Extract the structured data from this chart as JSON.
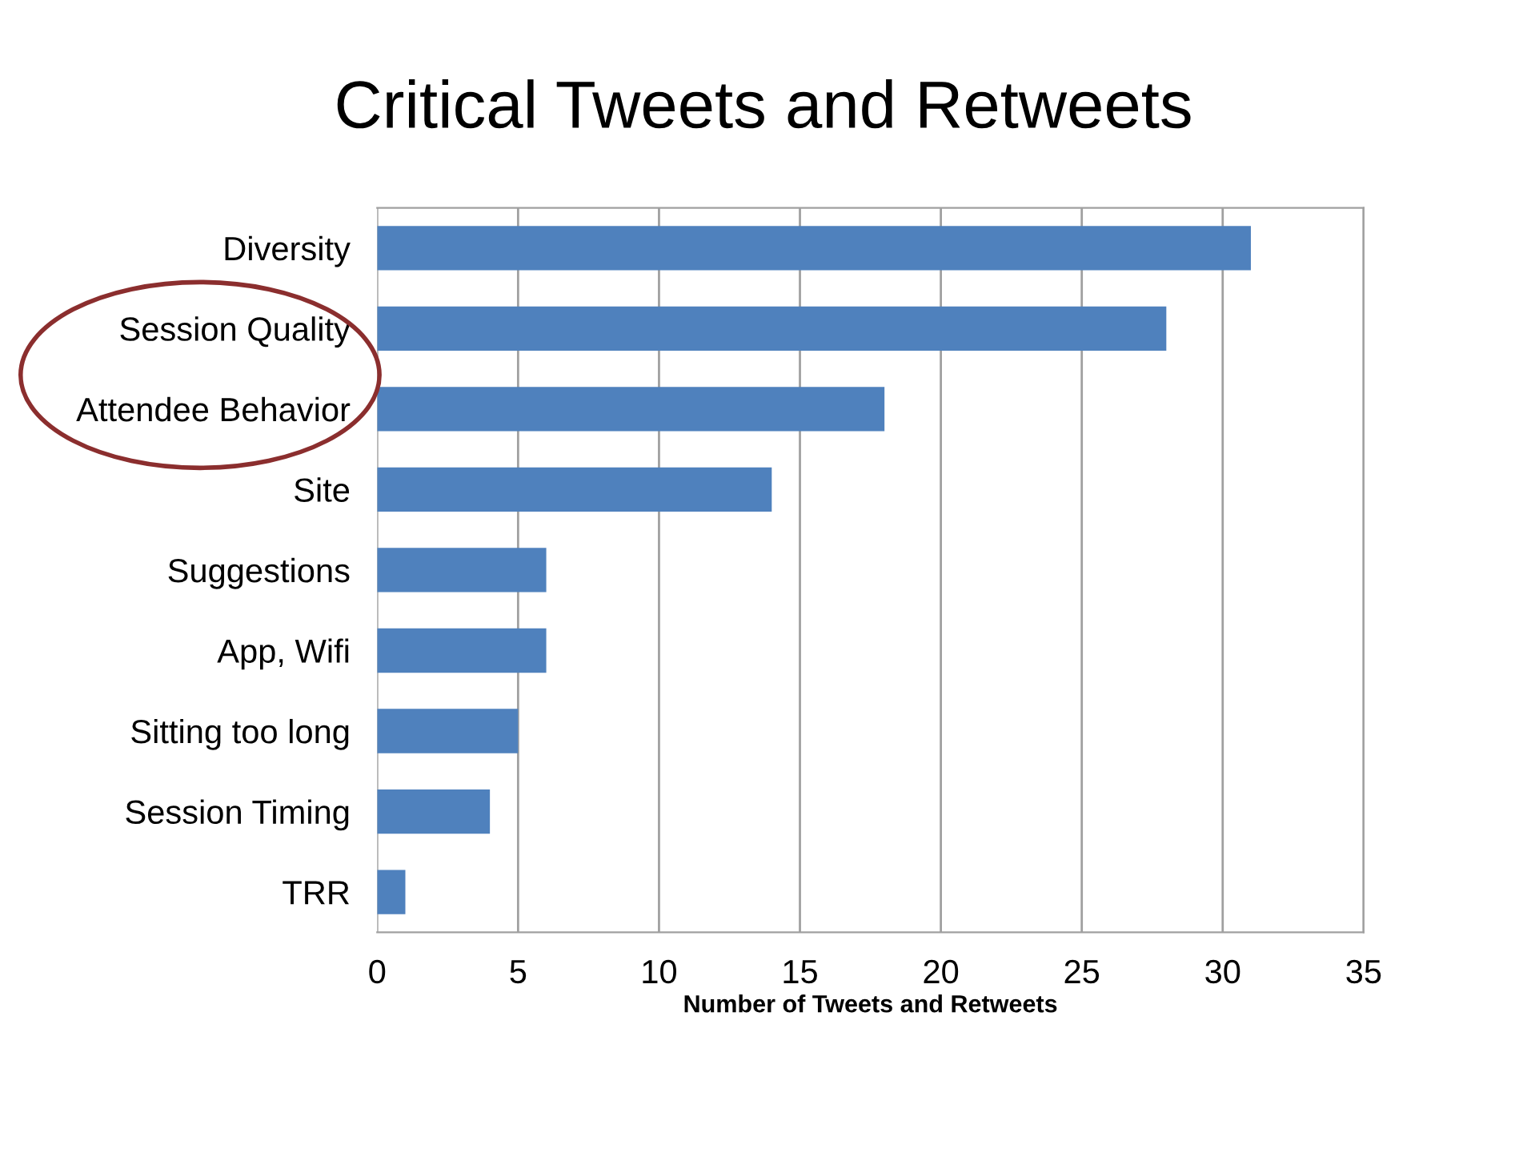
{
  "chart_data": {
    "type": "bar",
    "orientation": "horizontal",
    "title": "Critical Tweets and Retweets",
    "xlabel": "Number of Tweets and Retweets",
    "categories": [
      "Diversity",
      "Session Quality",
      "Attendee Behavior",
      "Site",
      "Suggestions",
      "App, Wifi",
      "Sitting too long",
      "Session Timing",
      "TRR"
    ],
    "values": [
      31,
      28,
      18,
      14,
      6,
      6,
      5,
      4,
      1
    ],
    "color": "#4f81bd",
    "xlim": [
      0,
      35
    ],
    "xticks": [
      0,
      5,
      10,
      15,
      20,
      25,
      30,
      35
    ],
    "grid": "x"
  }
}
